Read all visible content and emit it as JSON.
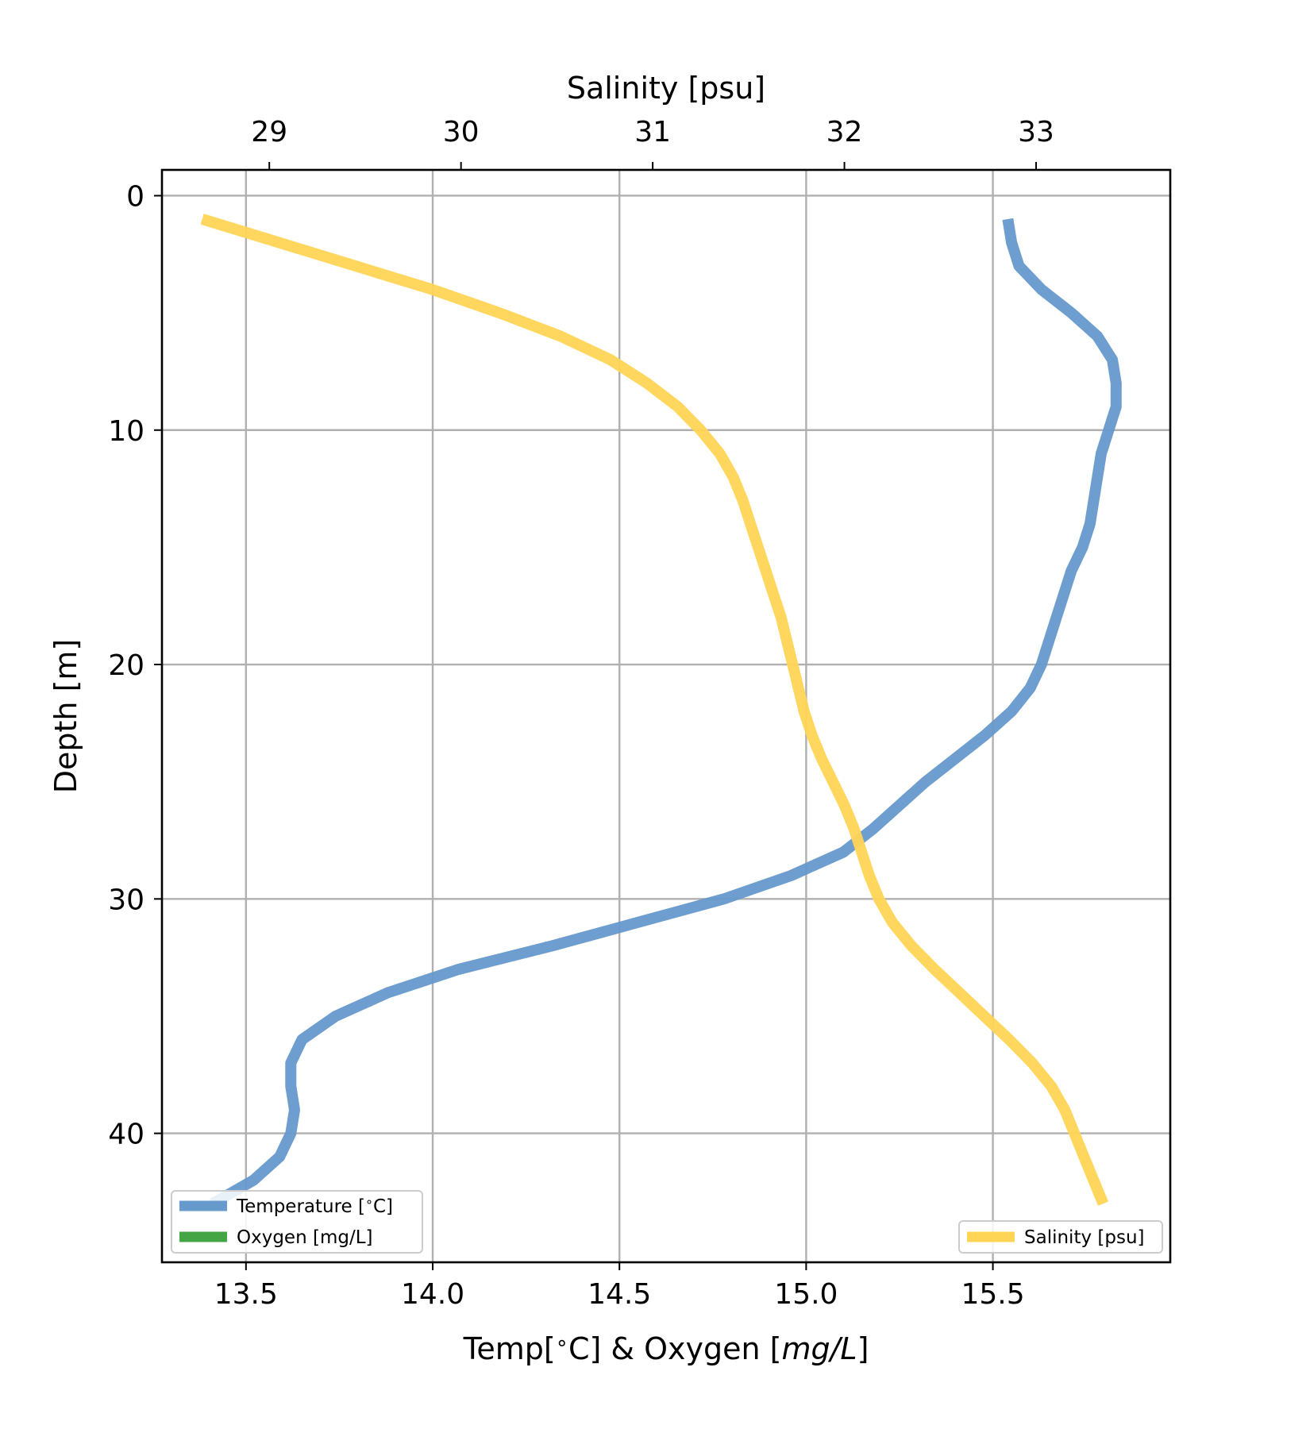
{
  "chart_data": {
    "type": "line",
    "xlabel": "Temp[ ∘C] & Oxygen [mg/L]",
    "xlabel_parts": {
      "prefix": "Temp[",
      "degree": "∘",
      "mid": "C] & Oxygen [",
      "italic": "mg/L",
      "suffix": "]"
    },
    "ylabel": "Depth [m]",
    "x2label": "Salinity [psu]",
    "xlim": [
      13.275,
      15.975
    ],
    "x2lim": [
      28.44,
      33.7
    ],
    "ylim": [
      45.5,
      -1.1
    ],
    "y_inverted": true,
    "xticks": [
      "13.5",
      "14.0",
      "14.5",
      "15.0",
      "15.5"
    ],
    "x2ticks": [
      "29",
      "30",
      "31",
      "32",
      "33"
    ],
    "yticks": [
      "0",
      "10",
      "20",
      "30",
      "40"
    ],
    "grid": true,
    "legend_bottom_left": [
      {
        "name": "Temperature [ ∘C]",
        "name_parts": {
          "prefix": "Temperature [",
          "degree": "∘",
          "suffix": "C]"
        },
        "color": "#6699cc"
      },
      {
        "name": "Oxygen [mg/L]",
        "color": "#44a544"
      }
    ],
    "legend_bottom_right": [
      {
        "name": "Salinity [psu]",
        "color": "#ffd555"
      }
    ],
    "series": [
      {
        "name": "Temperature [ ∘C]",
        "axis": "bottom",
        "color": "#6699cc",
        "depth": [
          1,
          2,
          3,
          4,
          5,
          6,
          7,
          8,
          9,
          10,
          11,
          12,
          13,
          14,
          15,
          16,
          17,
          18,
          19,
          20,
          21,
          22,
          23,
          24,
          25,
          26,
          27,
          28,
          29,
          30,
          31,
          32,
          33,
          34,
          35,
          36,
          37,
          38,
          39,
          40,
          41,
          42,
          43
        ],
        "values": [
          15.54,
          15.55,
          15.57,
          15.63,
          15.71,
          15.78,
          15.82,
          15.83,
          15.83,
          15.81,
          15.79,
          15.78,
          15.77,
          15.76,
          15.74,
          15.71,
          15.69,
          15.67,
          15.65,
          15.63,
          15.6,
          15.55,
          15.48,
          15.4,
          15.32,
          15.25,
          15.18,
          15.1,
          14.96,
          14.78,
          14.55,
          14.32,
          14.07,
          13.88,
          13.74,
          13.65,
          13.62,
          13.62,
          13.63,
          13.62,
          13.59,
          13.52,
          13.41
        ]
      },
      {
        "name": "Salinity [psu]",
        "axis": "top",
        "color": "#ffd555",
        "depth": [
          1,
          2,
          3,
          4,
          5,
          6,
          7,
          8,
          9,
          10,
          11,
          12,
          13,
          14,
          15,
          16,
          17,
          18,
          19,
          20,
          21,
          22,
          23,
          24,
          25,
          26,
          27,
          28,
          29,
          30,
          31,
          32,
          33,
          34,
          35,
          36,
          37,
          38,
          39,
          40,
          41,
          42,
          43
        ],
        "values": [
          28.65,
          29.05,
          29.45,
          29.85,
          30.2,
          30.52,
          30.78,
          30.97,
          31.13,
          31.25,
          31.35,
          31.42,
          31.47,
          31.51,
          31.55,
          31.59,
          31.63,
          31.67,
          31.7,
          31.73,
          31.76,
          31.79,
          31.83,
          31.88,
          31.94,
          32.0,
          32.05,
          32.09,
          32.13,
          32.18,
          32.25,
          32.35,
          32.47,
          32.6,
          32.73,
          32.86,
          32.98,
          33.08,
          33.15,
          33.2,
          33.25,
          33.3,
          33.35
        ]
      },
      {
        "name": "Oxygen [mg/L]",
        "axis": "bottom",
        "color": "#44a544",
        "depth": [],
        "values": []
      }
    ]
  }
}
